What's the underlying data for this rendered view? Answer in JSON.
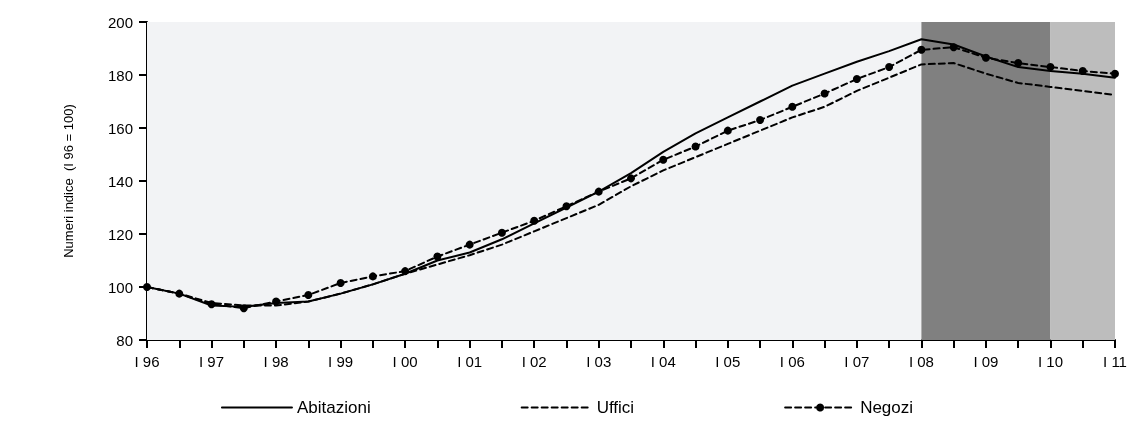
{
  "chart_data": {
    "type": "line",
    "ylabel": "Numeri indice  (I 96 = 100)",
    "categories": [
      "I 96",
      null,
      "I 97",
      null,
      "I 98",
      null,
      "I 99",
      null,
      "I 00",
      null,
      "I 01",
      null,
      "I 02",
      null,
      "I 03",
      null,
      "I 04",
      null,
      "I 05",
      null,
      "I 06",
      null,
      "I 07",
      null,
      "I 08",
      null,
      "I 09",
      null,
      "I 10",
      null,
      "I 11"
    ],
    "series": [
      {
        "name": "Abitazioni",
        "color": "#000000",
        "line_style": "solid",
        "marker": "none",
        "values": [
          100,
          97.5,
          93,
          92.5,
          94,
          94.5,
          97.5,
          101,
          105,
          110,
          113,
          118,
          124,
          130,
          136,
          143,
          151,
          158,
          164,
          170,
          176,
          180.5,
          185,
          189,
          193.5,
          191.5,
          187,
          183,
          181.5,
          180.5,
          179
        ]
      },
      {
        "name": "Uffici",
        "color": "#000000",
        "line_style": "dashed",
        "marker": "none",
        "values": [
          100,
          97.5,
          94,
          93,
          93,
          94.5,
          97.5,
          101,
          105,
          108.5,
          112,
          116,
          121,
          126,
          131,
          138,
          144,
          149,
          154,
          159,
          164,
          168,
          174,
          179,
          184,
          184.5,
          180.5,
          177,
          175.5,
          174,
          172.5
        ]
      },
      {
        "name": "Negozi",
        "color": "#000000",
        "line_style": "dashed",
        "marker": "circle",
        "values": [
          100,
          97.5,
          93.5,
          92,
          94.5,
          97,
          101.5,
          104,
          106,
          111.5,
          116,
          120.5,
          125,
          130.5,
          136,
          141,
          148,
          153,
          159,
          163,
          168,
          173,
          178.5,
          183,
          189.5,
          190.5,
          186.5,
          184.5,
          183,
          181.5,
          180.5
        ]
      }
    ],
    "ylim": [
      80,
      200
    ],
    "yticks": [
      80,
      100,
      120,
      140,
      160,
      180,
      200
    ],
    "bands": [
      {
        "axis": "x",
        "from": "I 96",
        "to": "I 08",
        "color": "#f2f3f5"
      },
      {
        "axis": "x",
        "from": "I 08",
        "to": "I 10",
        "color": "#808080"
      },
      {
        "axis": "x",
        "from": "I 10",
        "to": "I 11",
        "color": "#bdbdbd"
      }
    ],
    "grid": false,
    "legend": "bottom"
  }
}
